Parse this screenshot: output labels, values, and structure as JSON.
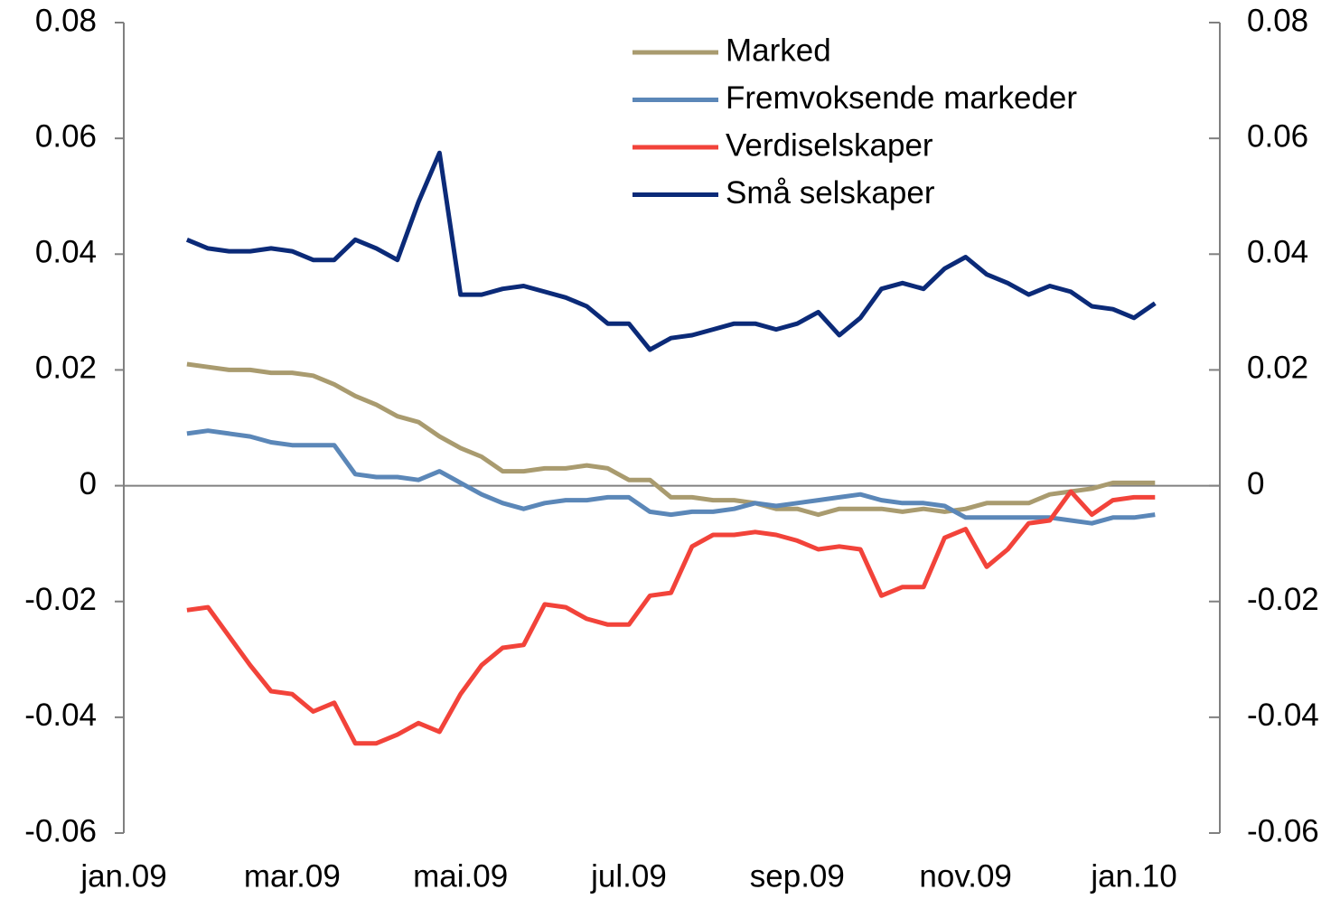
{
  "chart_data": {
    "type": "line",
    "categories": [
      "jan.09",
      null,
      null,
      null,
      null,
      null,
      null,
      null,
      "mar.09",
      null,
      null,
      null,
      null,
      null,
      null,
      null,
      "mai.09",
      null,
      null,
      null,
      null,
      null,
      null,
      null,
      "jul.09",
      null,
      null,
      null,
      null,
      null,
      null,
      null,
      "sep.09",
      null,
      null,
      null,
      null,
      null,
      null,
      null,
      "nov.09",
      null,
      null,
      null,
      null,
      null,
      null,
      null,
      "jan.10",
      null
    ],
    "series": [
      {
        "name": "Marked",
        "color": "#a99b6f",
        "values": [
          null,
          null,
          null,
          0.021,
          0.0205,
          0.02,
          0.02,
          0.0195,
          0.0195,
          0.019,
          0.0175,
          0.0155,
          0.014,
          0.012,
          0.011,
          0.0085,
          0.0065,
          0.005,
          0.0025,
          0.0025,
          0.003,
          0.003,
          0.0035,
          0.003,
          0.001,
          0.001,
          -0.002,
          -0.002,
          -0.0025,
          -0.0025,
          -0.003,
          -0.004,
          -0.004,
          -0.005,
          -0.004,
          -0.004,
          -0.004,
          -0.0045,
          -0.004,
          -0.0045,
          -0.004,
          -0.003,
          -0.003,
          -0.003,
          -0.0015,
          -0.001,
          -0.0005,
          0.0005,
          0.0005,
          0.0005
        ]
      },
      {
        "name": "Fremvoksende markeder",
        "color": "#5b87b8",
        "values": [
          null,
          null,
          null,
          0.009,
          0.0095,
          0.009,
          0.0085,
          0.0075,
          0.007,
          0.007,
          0.007,
          0.002,
          0.0015,
          0.0015,
          0.001,
          0.0025,
          0.0005,
          -0.0015,
          -0.003,
          -0.004,
          -0.003,
          -0.0025,
          -0.0025,
          -0.002,
          -0.002,
          -0.0045,
          -0.005,
          -0.0045,
          -0.0045,
          -0.004,
          -0.003,
          -0.0035,
          -0.003,
          -0.0025,
          -0.002,
          -0.0015,
          -0.0025,
          -0.003,
          -0.003,
          -0.0035,
          -0.0055,
          -0.0055,
          -0.0055,
          -0.0055,
          -0.0055,
          -0.006,
          -0.0065,
          -0.0055,
          -0.0055,
          -0.005
        ]
      },
      {
        "name": "Verdiselskaper",
        "color": "#f2433a",
        "values": [
          null,
          null,
          null,
          -0.0215,
          -0.021,
          -0.026,
          -0.031,
          -0.0355,
          -0.036,
          -0.039,
          -0.0375,
          -0.0445,
          -0.0445,
          -0.043,
          -0.041,
          -0.0425,
          -0.036,
          -0.031,
          -0.028,
          -0.0275,
          -0.0205,
          -0.021,
          -0.023,
          -0.024,
          -0.024,
          -0.019,
          -0.0185,
          -0.0105,
          -0.0085,
          -0.0085,
          -0.008,
          -0.0085,
          -0.0095,
          -0.011,
          -0.0105,
          -0.011,
          -0.019,
          -0.0175,
          -0.0175,
          -0.009,
          -0.0075,
          -0.014,
          -0.011,
          -0.0065,
          -0.006,
          -0.001,
          -0.005,
          -0.0025,
          -0.002,
          -0.002
        ]
      },
      {
        "name": "Små selskaper",
        "color": "#0b2a78",
        "values": [
          null,
          null,
          null,
          0.0425,
          0.041,
          0.0405,
          0.0405,
          0.041,
          0.0405,
          0.039,
          0.039,
          0.0425,
          0.041,
          0.039,
          0.049,
          0.0575,
          0.033,
          0.033,
          0.034,
          0.0345,
          0.0335,
          0.0325,
          0.031,
          0.028,
          0.028,
          0.0235,
          0.0255,
          0.026,
          0.027,
          0.028,
          0.028,
          0.027,
          0.028,
          0.03,
          0.026,
          0.029,
          0.034,
          0.035,
          0.034,
          0.0375,
          0.0395,
          0.0365,
          0.035,
          0.033,
          0.0345,
          0.0335,
          0.031,
          0.0305,
          0.029,
          0.0315
        ]
      }
    ],
    "ylim": [
      -0.06,
      0.08
    ],
    "yticks": [
      -0.06,
      -0.04,
      -0.02,
      0,
      0.02,
      0.04,
      0.06,
      0.08
    ],
    "y2lim": [
      -0.06,
      0.08
    ],
    "y2ticks": [
      -0.06,
      -0.04,
      -0.02,
      0,
      0.02,
      0.04,
      0.06,
      0.08
    ],
    "legend": "top"
  }
}
